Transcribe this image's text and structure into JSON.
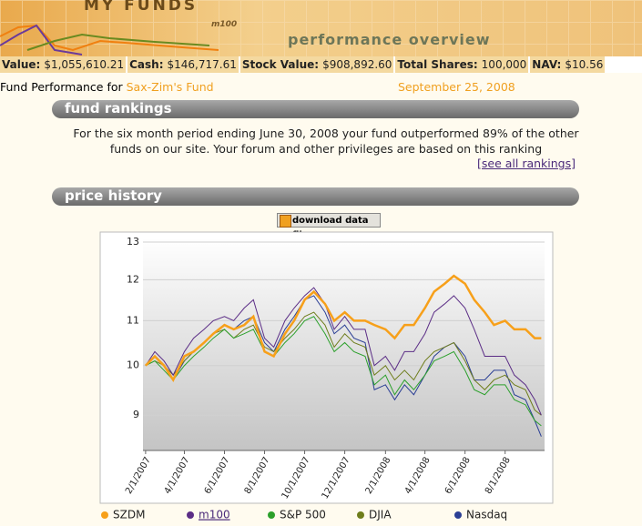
{
  "header": {
    "brand": "MY FUNDS",
    "badge": "m100",
    "subtitle": "performance overview"
  },
  "stats": [
    {
      "label": "Value:",
      "value": "$1,055,610.21"
    },
    {
      "label": "Cash:",
      "value": "$146,717.61"
    },
    {
      "label": "Stock Value:",
      "value": "$908,892.60"
    },
    {
      "label": "Total Shares:",
      "value": "100,000"
    },
    {
      "label": "NAV:",
      "value": "$10.56"
    }
  ],
  "fund": {
    "prefix": "Fund Performance for",
    "name": "Sax-Zim's Fund",
    "date": "September 25, 2008"
  },
  "rankings": {
    "title": "fund rankings",
    "text": "For the six month period ending June 30, 2008 your fund outperformed 89% of the other funds on our site. Your forum and other privileges are based on this ranking",
    "link": "[see all rankings]"
  },
  "history": {
    "title": "price history",
    "button": "download data file"
  },
  "chart_data": {
    "type": "line",
    "yscale": "log",
    "grid": true,
    "legend": "bottom",
    "x": [
      "2007-02-01",
      "2007-02-15",
      "2007-03-01",
      "2007-03-15",
      "2007-04-01",
      "2007-04-15",
      "2007-05-01",
      "2007-05-15",
      "2007-06-01",
      "2007-06-15",
      "2007-07-01",
      "2007-07-15",
      "2007-08-01",
      "2007-08-15",
      "2007-09-01",
      "2007-09-15",
      "2007-10-01",
      "2007-10-15",
      "2007-11-01",
      "2007-11-15",
      "2007-12-01",
      "2007-12-15",
      "2008-01-01",
      "2008-01-15",
      "2008-02-01",
      "2008-02-15",
      "2008-03-01",
      "2008-03-15",
      "2008-04-01",
      "2008-04-15",
      "2008-05-01",
      "2008-05-15",
      "2008-06-01",
      "2008-06-15",
      "2008-07-01",
      "2008-07-15",
      "2008-08-01",
      "2008-08-15",
      "2008-09-01",
      "2008-09-15",
      "2008-09-25"
    ],
    "xlim": [
      "2007-01-28",
      "2008-09-30"
    ],
    "xticks": [
      {
        "value": "2007-02-01",
        "label": "2/1/2007"
      },
      {
        "value": "2007-04-01",
        "label": "4/1/2007"
      },
      {
        "value": "2007-06-01",
        "label": "6/1/2007"
      },
      {
        "value": "2007-08-01",
        "label": "8/1/2007"
      },
      {
        "value": "2007-10-01",
        "label": "10/1/2007"
      },
      {
        "value": "2007-12-01",
        "label": "12/1/2007"
      },
      {
        "value": "2008-02-01",
        "label": "2/1/2008"
      },
      {
        "value": "2008-04-01",
        "label": "4/1/2008"
      },
      {
        "value": "2008-06-01",
        "label": "6/1/2008"
      },
      {
        "value": "2008-08-01",
        "label": "8/1/2008"
      }
    ],
    "ylim": [
      8.35,
      13
    ],
    "yticks": [
      9,
      10,
      11,
      12,
      13
    ],
    "series": [
      {
        "name": "Nasdaq",
        "color": "#2b3f95",
        "width": 1,
        "values": [
          10.0,
          10.2,
          10.0,
          9.7,
          10.1,
          10.3,
          10.5,
          10.7,
          10.9,
          10.8,
          11.0,
          11.1,
          10.5,
          10.3,
          10.8,
          11.1,
          11.5,
          11.6,
          11.2,
          10.7,
          10.9,
          10.6,
          10.5,
          9.5,
          9.6,
          9.3,
          9.6,
          9.4,
          9.8,
          10.2,
          10.4,
          10.5,
          10.2,
          9.7,
          9.7,
          9.9,
          9.9,
          9.4,
          9.3,
          8.9,
          8.6
        ]
      },
      {
        "name": "DJIA",
        "color": "#6e7d1c",
        "width": 1,
        "values": [
          10.0,
          10.1,
          10.0,
          9.8,
          10.1,
          10.3,
          10.5,
          10.7,
          10.8,
          10.6,
          10.8,
          10.9,
          10.4,
          10.3,
          10.6,
          10.8,
          11.1,
          11.2,
          10.9,
          10.4,
          10.7,
          10.5,
          10.4,
          9.8,
          10.0,
          9.7,
          9.9,
          9.7,
          10.1,
          10.3,
          10.4,
          10.5,
          10.1,
          9.7,
          9.5,
          9.7,
          9.8,
          9.6,
          9.5,
          9.1,
          9.0
        ]
      },
      {
        "name": "S&P 500",
        "color": "#2ca02c",
        "width": 1,
        "values": [
          10.0,
          10.1,
          9.9,
          9.7,
          10.0,
          10.2,
          10.4,
          10.6,
          10.8,
          10.6,
          10.7,
          10.8,
          10.3,
          10.2,
          10.5,
          10.7,
          11.0,
          11.1,
          10.7,
          10.3,
          10.5,
          10.3,
          10.2,
          9.6,
          9.8,
          9.4,
          9.7,
          9.5,
          9.8,
          10.1,
          10.2,
          10.3,
          9.9,
          9.5,
          9.4,
          9.6,
          9.6,
          9.3,
          9.2,
          8.9,
          8.8
        ]
      },
      {
        "name": "m100",
        "color": "#5b2d86",
        "width": 1,
        "values": [
          10.0,
          10.3,
          10.1,
          9.8,
          10.3,
          10.6,
          10.8,
          11.0,
          11.1,
          11.0,
          11.3,
          11.5,
          10.6,
          10.4,
          11.0,
          11.3,
          11.6,
          11.8,
          11.4,
          10.8,
          11.1,
          10.8,
          10.8,
          10.0,
          10.2,
          9.9,
          10.3,
          10.3,
          10.7,
          11.2,
          11.4,
          11.6,
          11.3,
          10.8,
          10.2,
          10.2,
          10.2,
          9.8,
          9.6,
          9.3,
          9.0
        ]
      },
      {
        "name": "SZDM",
        "color": "#f7a01a",
        "width": 2.5,
        "values": [
          10.0,
          10.2,
          10.0,
          9.7,
          10.2,
          10.3,
          10.5,
          10.7,
          10.9,
          10.8,
          10.9,
          11.1,
          10.3,
          10.2,
          10.7,
          11.0,
          11.5,
          11.7,
          11.4,
          11.0,
          11.2,
          11.0,
          11.0,
          10.9,
          10.8,
          10.6,
          10.9,
          10.9,
          11.3,
          11.7,
          11.9,
          12.1,
          11.9,
          11.5,
          11.2,
          10.9,
          11.0,
          10.8,
          10.8,
          10.6,
          10.6
        ]
      }
    ]
  }
}
